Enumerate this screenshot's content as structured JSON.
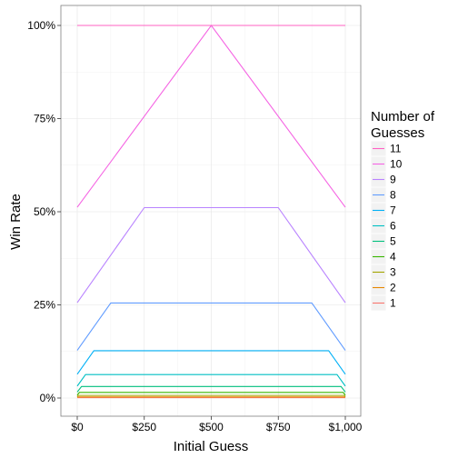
{
  "chart_data": {
    "type": "line",
    "xlabel": "Initial Guess",
    "ylabel": "Win Rate",
    "x_ticks": [
      "$0",
      "$250",
      "$500",
      "$750",
      "$1,000"
    ],
    "x_tick_values": [
      0,
      250,
      500,
      750,
      1000
    ],
    "y_ticks": [
      "0%",
      "25%",
      "50%",
      "75%",
      "100%"
    ],
    "y_tick_values": [
      0,
      25,
      50,
      75,
      100
    ],
    "xlim": [
      0,
      1000
    ],
    "ylim": [
      0,
      100
    ],
    "grid": true,
    "legend": {
      "title_line1": "Number of",
      "title_line2": "Guesses",
      "placement": "right"
    },
    "series": [
      {
        "name": "11",
        "color": "#FF61C3",
        "points": [
          [
            0,
            100
          ],
          [
            1000,
            100
          ]
        ]
      },
      {
        "name": "10",
        "color": "#F564E3",
        "points": [
          [
            0,
            51.2
          ],
          [
            500,
            100
          ],
          [
            1000,
            51.2
          ]
        ]
      },
      {
        "name": "9",
        "color": "#B983FF",
        "points": [
          [
            0,
            25.6
          ],
          [
            250,
            51.1
          ],
          [
            750,
            51.1
          ],
          [
            1000,
            25.6
          ]
        ]
      },
      {
        "name": "8",
        "color": "#619CFF",
        "points": [
          [
            0,
            12.8
          ],
          [
            125,
            25.5
          ],
          [
            875,
            25.5
          ],
          [
            1000,
            12.8
          ]
        ]
      },
      {
        "name": "7",
        "color": "#00B0F6",
        "points": [
          [
            0,
            6.4
          ],
          [
            62,
            12.7
          ],
          [
            938,
            12.7
          ],
          [
            1000,
            6.4
          ]
        ]
      },
      {
        "name": "6",
        "color": "#00BFC4",
        "points": [
          [
            0,
            3.2
          ],
          [
            31,
            6.3
          ],
          [
            969,
            6.3
          ],
          [
            1000,
            3.2
          ]
        ]
      },
      {
        "name": "5",
        "color": "#00BF7D",
        "points": [
          [
            0,
            1.6
          ],
          [
            16,
            3.1
          ],
          [
            984,
            3.1
          ],
          [
            1000,
            1.6
          ]
        ]
      },
      {
        "name": "4",
        "color": "#39B600",
        "points": [
          [
            0,
            0.8
          ],
          [
            8,
            1.5
          ],
          [
            992,
            1.5
          ],
          [
            1000,
            0.8
          ]
        ]
      },
      {
        "name": "3",
        "color": "#A3A500",
        "points": [
          [
            0,
            0.4
          ],
          [
            4,
            0.7
          ],
          [
            996,
            0.7
          ],
          [
            1000,
            0.4
          ]
        ]
      },
      {
        "name": "2",
        "color": "#E58700",
        "points": [
          [
            0,
            0.2
          ],
          [
            2,
            0.3
          ],
          [
            998,
            0.3
          ],
          [
            1000,
            0.2
          ]
        ]
      },
      {
        "name": "1",
        "color": "#F8766D",
        "points": [
          [
            0,
            0.1
          ],
          [
            1000,
            0.1
          ]
        ]
      }
    ]
  }
}
